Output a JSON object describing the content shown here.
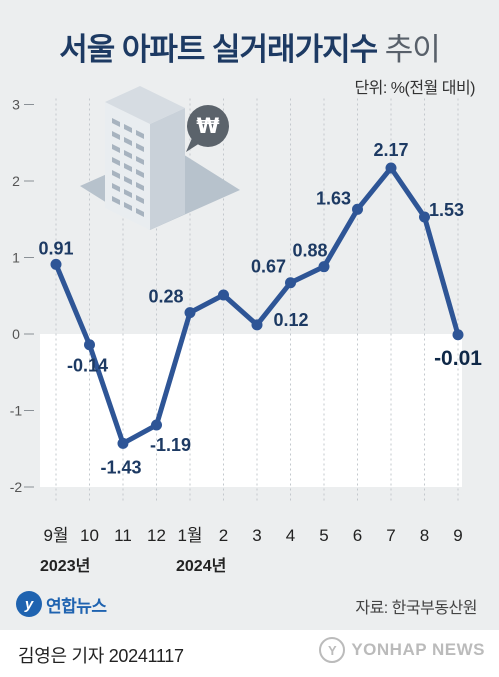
{
  "header": {
    "title_main": "서울 아파트 실거래가지수",
    "title_sub": "추이",
    "unit": "단위: %(전월 대비)"
  },
  "chart_data": {
    "type": "line",
    "categories": [
      "9월",
      "10",
      "11",
      "12",
      "1월",
      "2",
      "3",
      "4",
      "5",
      "6",
      "7",
      "8",
      "9"
    ],
    "values": [
      0.91,
      -0.14,
      -1.43,
      -1.19,
      0.28,
      0.51,
      0.12,
      0.67,
      0.88,
      1.63,
      2.17,
      1.53,
      -0.01
    ],
    "data_labels": [
      "0.91",
      "-0.14",
      "-1.43",
      "-1.19",
      "0.28",
      "",
      "0.12",
      "0.67",
      "0.88",
      "1.63",
      "2.17",
      "1.53",
      "-0.01"
    ],
    "y_ticks": [
      "3",
      "2",
      "1",
      "0",
      "-1",
      "-2"
    ],
    "ylim": [
      -2,
      3
    ],
    "year_labels": [
      "2023년",
      "2024년"
    ],
    "grid": true,
    "colors": {
      "line": "#2e5596",
      "label": "#1d3a63",
      "accent_label": "#0f2847"
    }
  },
  "illustration": {
    "icon": "building-icon",
    "bubble_icon": "won-bubble-icon",
    "bubble_symbol": "₩"
  },
  "footer": {
    "logo_mark": "y",
    "logo_text": "연합뉴스",
    "source": "자료: 한국부동산원",
    "byline": "김영은 기자  20241117",
    "watermark_mark": "Y",
    "watermark_text": "YONHAP NEWS"
  }
}
